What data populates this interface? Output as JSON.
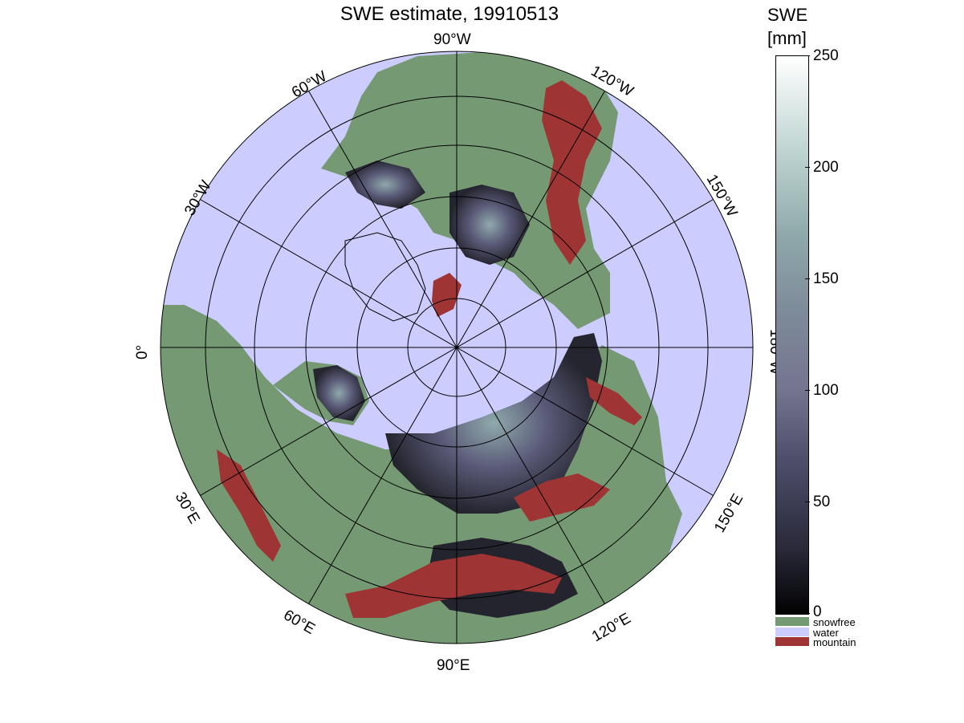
{
  "title": "SWE estimate, 19910513",
  "colorbar": {
    "title_line1": "SWE",
    "title_line2": "[mm]",
    "ticks": [
      "250",
      "200",
      "150",
      "100",
      "50",
      "0"
    ],
    "range": [
      0,
      250
    ],
    "gradient_colors": [
      "#020203",
      "#4f4f6d",
      "#8fa9ab",
      "#ffffff"
    ]
  },
  "legend": [
    {
      "label": "snowfree",
      "color": "#759a73"
    },
    {
      "label": "water",
      "color": "#ccccff"
    },
    {
      "label": "mountain",
      "color": "#9e3434"
    }
  ],
  "map": {
    "projection": "north-polar stereographic",
    "center": "North Pole",
    "ocean_color": "#ccccff",
    "land_color": "#759a73",
    "snow_color": "#2d2d3f",
    "mountain_color": "#9e3434",
    "longitude_labels": {
      "top": "90°W",
      "lon_60W": "60°W",
      "lon_120W": "120°W",
      "lon_30W": "30°W",
      "lon_150W": "150°W",
      "lon_0": "0°",
      "lon_180W": "180°W",
      "lon_30E": "30°E",
      "lon_150E": "150°E",
      "lon_60E": "60°E",
      "lon_120E": "120°E",
      "bottom": "90°E"
    }
  }
}
